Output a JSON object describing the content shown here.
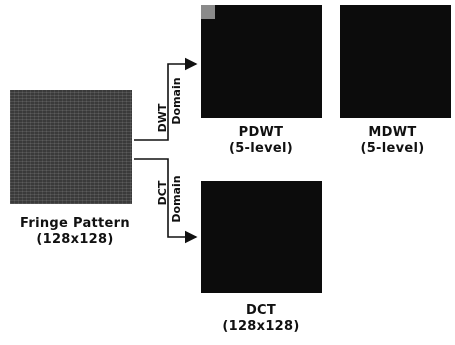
{
  "source": {
    "label_line1": "Fringe Pattern",
    "label_line2": "(128x128)"
  },
  "branches": {
    "dwt": {
      "word": "DWT",
      "domain": "Domain"
    },
    "dct": {
      "word": "DCT",
      "domain": "Domain"
    }
  },
  "outputs": {
    "pdwt": {
      "line1": "PDWT",
      "line2": "(5-level)"
    },
    "mdwt": {
      "line1": "MDWT",
      "line2": "(5-level)"
    },
    "dct": {
      "line1": "DCT",
      "line2": "(128x128)"
    }
  }
}
